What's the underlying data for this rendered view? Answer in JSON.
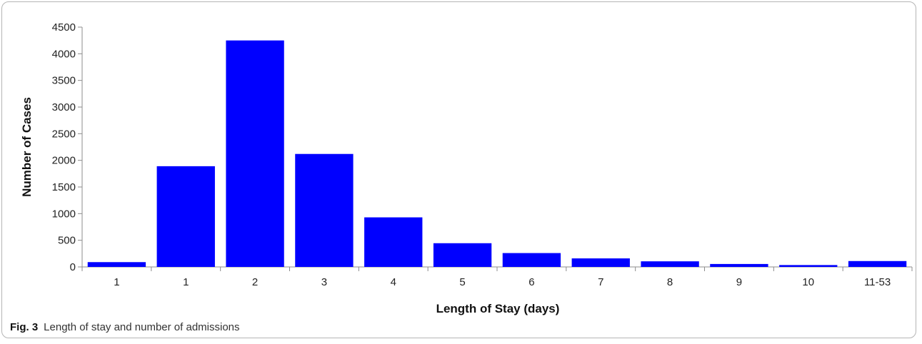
{
  "chart_data": {
    "type": "bar",
    "categories": [
      "1",
      "1",
      "2",
      "3",
      "4",
      "5",
      "6",
      "7",
      "8",
      "9",
      "10",
      "11-53"
    ],
    "values": [
      90,
      1890,
      4250,
      2120,
      930,
      445,
      260,
      160,
      105,
      55,
      35,
      110
    ],
    "xlabel": "Length of Stay (days)",
    "ylabel": "Number of Cases",
    "ylim": [
      0,
      4500
    ],
    "yticks": [
      0,
      500,
      1000,
      1500,
      2000,
      2500,
      3000,
      3500,
      4000,
      4500
    ],
    "grid": false,
    "legend": "none",
    "bar_color": "#0000ff"
  },
  "caption": {
    "label": "Fig. 3",
    "text": "Length of stay and number of admissions"
  }
}
